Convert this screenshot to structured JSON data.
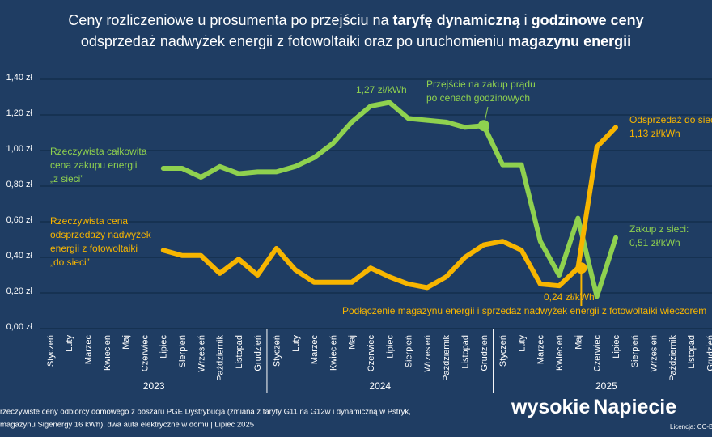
{
  "chart_data": {
    "type": "line",
    "title_lines": [
      [
        {
          "text": "Ceny rozliczeniowe u prosumenta po przejściu na ",
          "bold": false
        },
        {
          "text": "taryfę dynamiczną",
          "bold": true
        },
        {
          "text": " i ",
          "bold": false
        },
        {
          "text": "godzinowe ceny",
          "bold": true
        }
      ],
      [
        {
          "text": "odsprzedaż nadwyżek energii z fotowoltaiki oraz po uruchomieniu ",
          "bold": false
        },
        {
          "text": "magazynu energii",
          "bold": true
        }
      ]
    ],
    "categories": [
      "Styczeń",
      "Luty",
      "Marzec",
      "Kwiecień",
      "Maj",
      "Czerwiec",
      "Lipiec",
      "Sierpień",
      "Wrzesień",
      "Październik",
      "Listopad",
      "Grudzień",
      "Styczeń",
      "Luty",
      "Marzec",
      "Kwiecień",
      "Maj",
      "Czerwiec",
      "Lipiec",
      "Sierpień",
      "Wrzesień",
      "Październik",
      "Listopad",
      "Grudzień",
      "Styczeń",
      "Luty",
      "Marzec",
      "Kwiecień",
      "Maj",
      "Czerwiec",
      "Lipiec",
      "Sierpień",
      "Wrzesień",
      "Październik",
      "Listopad",
      "Grudzień"
    ],
    "years": [
      "2023",
      "2024",
      "2025"
    ],
    "series": [
      {
        "name": [
          "Rzeczywista całkowita",
          "cena zakupu energii",
          "„z sieci”"
        ],
        "color": "#8fd14f",
        "values": [
          null,
          null,
          null,
          null,
          null,
          null,
          0.9,
          0.9,
          0.85,
          0.91,
          0.87,
          0.88,
          0.88,
          0.91,
          0.96,
          1.04,
          1.16,
          1.25,
          1.27,
          1.18,
          1.17,
          1.16,
          1.13,
          1.14,
          0.92,
          0.92,
          0.49,
          0.3,
          0.62,
          0.18,
          0.51,
          null,
          null,
          null,
          null,
          null
        ]
      },
      {
        "name": [
          "Rzeczywista cena",
          "odsprzedaży nadwyżek",
          "energii z fotowoltaiki",
          "„do sieci”"
        ],
        "color": "#f7b500",
        "values": [
          null,
          null,
          null,
          null,
          null,
          null,
          0.44,
          0.41,
          0.41,
          0.31,
          0.39,
          0.3,
          0.45,
          0.33,
          0.26,
          0.26,
          0.26,
          0.34,
          0.29,
          0.25,
          0.23,
          0.29,
          0.4,
          0.47,
          0.49,
          0.44,
          0.25,
          0.24,
          0.34,
          1.02,
          1.13,
          null,
          null,
          null,
          null,
          null
        ]
      }
    ],
    "ylim": [
      0,
      1.4
    ],
    "yticks": [
      {
        "value": 0,
        "label": "0,00 zł"
      },
      {
        "value": 0.2,
        "label": "0,20 zł"
      },
      {
        "value": 0.4,
        "label": "0,40 zł"
      },
      {
        "value": 0.6,
        "label": "0,60 zł"
      },
      {
        "value": 0.8,
        "label": "0,80 zł"
      },
      {
        "value": 1.0,
        "label": "1,00 zł"
      },
      {
        "value": 1.2,
        "label": "1,20 zł"
      },
      {
        "value": 1.4,
        "label": "1,40 zł"
      }
    ],
    "grid": true,
    "annotations": [
      {
        "lines": [
          "1,27 zł/kWh"
        ],
        "color": "#8fd14f"
      },
      {
        "lines": [
          "Przejście na zakup prądu",
          "po cenach godzinowych"
        ],
        "color": "#8fd14f"
      },
      {
        "lines": [
          "Odsprzedaż do sieci:",
          "1,13 zł/kWh"
        ],
        "color": "#f7b500"
      },
      {
        "lines": [
          "Zakup z sieci:",
          "0,51 zł/kWh"
        ],
        "color": "#8fd14f"
      },
      {
        "lines": [
          "0,24 zł/kWh"
        ],
        "color": "#f7b500"
      },
      {
        "lines": [
          "Podłączenie magazynu energii i sprzedaż nadwyżek energii z fotowoltaiki wieczorem"
        ],
        "color": "#f7b500"
      }
    ],
    "footer": [
      "rzeczywiste ceny odbiorcy domowego z obszaru PGE Dystrybucja (zmiana z taryfy G11 na G12w i dynamiczną w Pstryk,",
      "magazynu Sigenergy 16 kWh), dwa auta elektryczne w domu  |  Lipiec 2025"
    ],
    "logo": [
      "wysokie",
      "Napiecie"
    ],
    "license": "Licencja: CC-BY"
  }
}
